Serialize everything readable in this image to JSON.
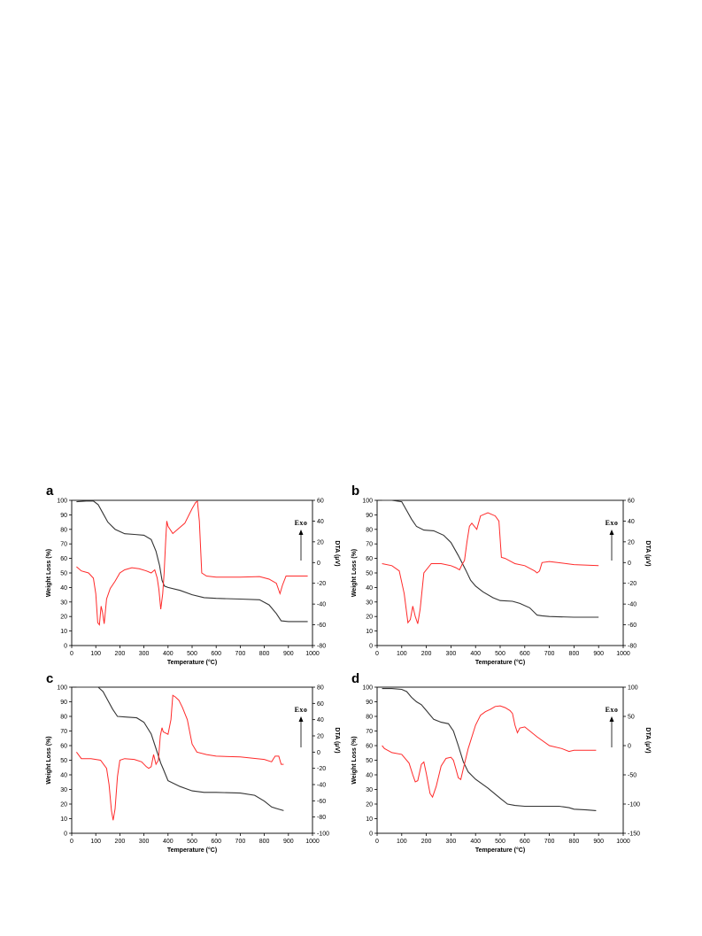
{
  "colors": {
    "tga": "#333333",
    "dta": "#ff2a2a"
  },
  "chart_data": [
    {
      "type": "line",
      "panel": "a",
      "xlabel": "Temperature (°C)",
      "ylabel": "Weight Loss (%)",
      "y2label": "DTA (μV)",
      "annotation": "Exo",
      "xlim": [
        0,
        1000
      ],
      "ylim": [
        0,
        100
      ],
      "y2lim": [
        -80,
        60
      ],
      "xticks": [
        0,
        100,
        200,
        300,
        400,
        500,
        600,
        700,
        800,
        900,
        1000
      ],
      "yticks": [
        0,
        10,
        20,
        30,
        40,
        50,
        60,
        70,
        80,
        90,
        100
      ],
      "y2ticks": [
        -80,
        -60,
        -40,
        -20,
        0,
        20,
        40,
        60
      ],
      "series": [
        {
          "axis": "left",
          "color": "#333333",
          "x": [
            20,
            60,
            90,
            110,
            130,
            150,
            180,
            220,
            260,
            300,
            330,
            350,
            365,
            375,
            385,
            400,
            450,
            500,
            550,
            600,
            700,
            780,
            820,
            850,
            870,
            900,
            950,
            980
          ],
          "y": [
            99,
            99.5,
            99.5,
            97,
            91,
            85,
            80,
            77,
            76.5,
            76,
            73,
            65,
            55,
            45,
            41,
            40,
            38,
            35,
            33,
            32.5,
            32,
            31.5,
            28,
            22,
            17,
            16.5,
            16.5,
            16.5
          ]
        },
        {
          "axis": "right",
          "color": "#ff2a2a",
          "x": [
            20,
            40,
            70,
            90,
            100,
            108,
            115,
            122,
            128,
            135,
            145,
            160,
            180,
            200,
            220,
            250,
            280,
            310,
            330,
            345,
            355,
            362,
            370,
            378,
            384,
            390,
            395,
            400,
            420,
            440,
            470,
            500,
            515,
            522,
            530,
            540,
            560,
            600,
            700,
            780,
            820,
            850,
            865,
            875,
            890,
            950,
            980
          ],
          "y": [
            -4,
            -8,
            -10,
            -15,
            -30,
            -58,
            -60,
            -42,
            -48,
            -59,
            -35,
            -25,
            -18,
            -10,
            -7,
            -5,
            -6,
            -8,
            -10,
            -7,
            -15,
            -26,
            -45,
            -30,
            -10,
            20,
            40,
            35,
            28,
            32,
            38,
            52,
            58,
            59,
            40,
            -10,
            -13,
            -14,
            -14,
            -13.5,
            -16,
            -20,
            -30,
            -22,
            -13,
            -13,
            -13
          ]
        }
      ]
    },
    {
      "type": "line",
      "panel": "b",
      "xlabel": "Temperature (°C)",
      "ylabel": "Weight Loss (%)",
      "y2label": "DTA (μV)",
      "annotation": "Exo",
      "xlim": [
        0,
        1000
      ],
      "ylim": [
        0,
        100
      ],
      "y2lim": [
        -80,
        60
      ],
      "xticks": [
        0,
        100,
        200,
        300,
        400,
        500,
        600,
        700,
        800,
        900,
        1000
      ],
      "yticks": [
        0,
        10,
        20,
        30,
        40,
        50,
        60,
        70,
        80,
        90,
        100
      ],
      "y2ticks": [
        -80,
        -60,
        -40,
        -20,
        0,
        20,
        40,
        60
      ],
      "series": [
        {
          "axis": "left",
          "color": "#333333",
          "x": [
            20,
            60,
            100,
            120,
            140,
            160,
            190,
            230,
            270,
            300,
            330,
            360,
            380,
            400,
            430,
            470,
            500,
            550,
            580,
            620,
            650,
            670,
            700,
            800,
            900
          ],
          "y": [
            100,
            100,
            99,
            93,
            87,
            82,
            79.5,
            79,
            76,
            71,
            62,
            52,
            45,
            41,
            37,
            33,
            31,
            30.5,
            29,
            26,
            21,
            20.5,
            20,
            19.5,
            19.5
          ]
        },
        {
          "axis": "right",
          "color": "#ff2a2a",
          "x": [
            20,
            60,
            90,
            110,
            125,
            135,
            145,
            155,
            165,
            175,
            190,
            220,
            260,
            300,
            320,
            335,
            345,
            355,
            365,
            375,
            385,
            395,
            405,
            420,
            450,
            480,
            495,
            505,
            520,
            560,
            600,
            640,
            650,
            660,
            670,
            700,
            800,
            900
          ],
          "y": [
            -1,
            -3,
            -8,
            -30,
            -58,
            -55,
            -42,
            -52,
            -59,
            -45,
            -10,
            -1,
            -1,
            -3,
            -5,
            -7,
            -2,
            2,
            20,
            35,
            38,
            35,
            32,
            45,
            48,
            45,
            40,
            5,
            4,
            -1,
            -3,
            -8,
            -10,
            -8,
            0,
            1,
            -2,
            -3
          ]
        }
      ]
    },
    {
      "type": "line",
      "panel": "c",
      "xlabel": "Temperature (°C)",
      "ylabel": "Weight Loss (%)",
      "y2label": "DTA (μV)",
      "annotation": "Exo",
      "xlim": [
        0,
        1000
      ],
      "ylim": [
        0,
        100
      ],
      "y2lim": [
        -100,
        80
      ],
      "xticks": [
        0,
        100,
        200,
        300,
        400,
        500,
        600,
        700,
        800,
        900,
        1000
      ],
      "yticks": [
        0,
        10,
        20,
        30,
        40,
        50,
        60,
        70,
        80,
        90,
        100
      ],
      "y2ticks": [
        -100,
        -80,
        -60,
        -40,
        -20,
        0,
        20,
        40,
        60,
        80
      ],
      "series": [
        {
          "axis": "left",
          "color": "#333333",
          "x": [
            20,
            60,
            110,
            130,
            150,
            170,
            190,
            230,
            270,
            300,
            330,
            350,
            370,
            380,
            400,
            450,
            500,
            550,
            600,
            700,
            760,
            800,
            830,
            850,
            880
          ],
          "y": [
            100,
            100,
            100,
            97,
            91,
            85,
            80,
            79.5,
            79,
            76,
            68,
            58,
            48,
            44,
            36,
            32,
            29,
            28,
            28,
            27.5,
            26,
            22,
            18,
            17,
            15.5
          ]
        },
        {
          "axis": "right",
          "color": "#ff2a2a",
          "x": [
            20,
            40,
            80,
            120,
            145,
            155,
            165,
            172,
            180,
            190,
            200,
            220,
            260,
            290,
            310,
            320,
            330,
            340,
            350,
            360,
            368,
            375,
            380,
            400,
            412,
            420,
            430,
            445,
            460,
            480,
            500,
            520,
            560,
            600,
            700,
            800,
            830,
            845,
            860,
            870,
            880
          ],
          "y": [
            0,
            -8,
            -8,
            -10,
            -20,
            -40,
            -72,
            -84,
            -70,
            -30,
            -10,
            -8,
            -9,
            -12,
            -18,
            -20,
            -18,
            -3,
            -15,
            -10,
            20,
            30,
            25,
            22,
            40,
            70,
            68,
            64,
            55,
            40,
            10,
            0,
            -3,
            -5,
            -6,
            -9,
            -12,
            -5,
            -5,
            -15,
            -15
          ]
        }
      ]
    },
    {
      "type": "line",
      "panel": "d",
      "xlabel": "Temperature (°C)",
      "ylabel": "Weight Loss (%)",
      "y2label": "DTA (μV)",
      "annotation": "Exo",
      "xlim": [
        0,
        1000
      ],
      "ylim": [
        0,
        100
      ],
      "y2lim": [
        -150,
        100
      ],
      "xticks": [
        0,
        100,
        200,
        300,
        400,
        500,
        600,
        700,
        800,
        900,
        1000
      ],
      "yticks": [
        0,
        10,
        20,
        30,
        40,
        50,
        60,
        70,
        80,
        90,
        100
      ],
      "y2ticks": [
        -150,
        -100,
        -50,
        0,
        50,
        100
      ],
      "series": [
        {
          "axis": "left",
          "color": "#333333",
          "x": [
            20,
            60,
            100,
            120,
            140,
            160,
            180,
            200,
            230,
            260,
            290,
            310,
            330,
            350,
            370,
            400,
            450,
            500,
            530,
            560,
            600,
            650,
            700,
            740,
            780,
            800,
            850,
            890
          ],
          "y": [
            99,
            99,
            98.5,
            97,
            93,
            90,
            88,
            84,
            78,
            76,
            75,
            70,
            60,
            49,
            42,
            37,
            31,
            24,
            20,
            19,
            18.5,
            18.5,
            18.5,
            18.5,
            17.5,
            16.5,
            16,
            15.5
          ]
        },
        {
          "axis": "right",
          "color": "#ff2a2a",
          "x": [
            20,
            30,
            60,
            100,
            130,
            145,
            155,
            165,
            180,
            190,
            200,
            215,
            225,
            240,
            260,
            280,
            300,
            310,
            320,
            330,
            340,
            350,
            370,
            400,
            420,
            440,
            460,
            480,
            500,
            520,
            540,
            550,
            560,
            570,
            580,
            600,
            650,
            700,
            750,
            780,
            800,
            850,
            890
          ],
          "y": [
            0,
            -5,
            -12,
            -15,
            -30,
            -50,
            -62,
            -60,
            -32,
            -28,
            -48,
            -82,
            -88,
            -70,
            -35,
            -22,
            -20,
            -25,
            -40,
            -55,
            -58,
            -40,
            -5,
            35,
            52,
            58,
            62,
            67,
            68,
            65,
            60,
            55,
            35,
            22,
            30,
            32,
            15,
            0,
            -5,
            -10,
            -8,
            -8,
            -8
          ]
        }
      ]
    }
  ]
}
